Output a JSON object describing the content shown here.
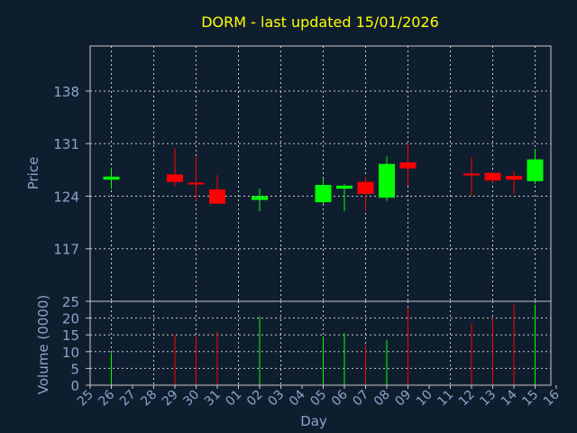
{
  "chart_data": {
    "type": "candlestick",
    "title": "DORM - last updated 15/01/2026",
    "xlabel": "Day",
    "x_tick_labels": [
      "25",
      "26",
      "27",
      "28",
      "29",
      "30",
      "31",
      "01",
      "02",
      "03",
      "04",
      "05",
      "06",
      "07",
      "08",
      "09",
      "10",
      "11",
      "12",
      "13",
      "14",
      "15",
      "16"
    ],
    "price_panel": {
      "ylabel": "Price",
      "ylim": [
        110,
        144
      ],
      "yticks": [
        117,
        124,
        131,
        138
      ],
      "grid": true,
      "candles": [
        {
          "day": "26",
          "open": 126.2,
          "high": 127.8,
          "low": 125.0,
          "close": 126.6
        },
        {
          "day": "29",
          "open": 126.9,
          "high": 130.3,
          "low": 125.3,
          "close": 125.9
        },
        {
          "day": "30",
          "open": 125.8,
          "high": 129.3,
          "low": 123.4,
          "close": 125.6
        },
        {
          "day": "31",
          "open": 124.9,
          "high": 126.8,
          "low": 123.0,
          "close": 123.0
        },
        {
          "day": "02",
          "open": 123.5,
          "high": 125.0,
          "low": 122.0,
          "close": 124.0
        },
        {
          "day": "05",
          "open": 123.2,
          "high": 126.4,
          "low": 123.0,
          "close": 125.5
        },
        {
          "day": "06",
          "open": 125.0,
          "high": 125.6,
          "low": 122.0,
          "close": 125.4
        },
        {
          "day": "07",
          "open": 125.9,
          "high": 126.6,
          "low": 122.0,
          "close": 124.3
        },
        {
          "day": "08",
          "open": 123.8,
          "high": 129.3,
          "low": 123.4,
          "close": 128.3
        },
        {
          "day": "09",
          "open": 128.5,
          "high": 131.0,
          "low": 125.4,
          "close": 127.7
        },
        {
          "day": "12",
          "open": 127.0,
          "high": 129.2,
          "low": 124.0,
          "close": 126.8
        },
        {
          "day": "13",
          "open": 127.1,
          "high": 127.2,
          "low": 125.8,
          "close": 126.1
        },
        {
          "day": "14",
          "open": 126.7,
          "high": 127.4,
          "low": 124.3,
          "close": 126.2
        },
        {
          "day": "15",
          "open": 126.0,
          "high": 130.3,
          "low": 125.6,
          "close": 128.9
        }
      ]
    },
    "volume_panel": {
      "ylabel": "Volume (0000)",
      "ylim": [
        0,
        25
      ],
      "yticks": [
        0,
        5,
        10,
        15,
        20,
        25
      ],
      "grid": true,
      "volumes": [
        9.5,
        15.0,
        14.5,
        16.0,
        20.5,
        14.5,
        15.5,
        12.0,
        13.5,
        23.0,
        18.5,
        20.0,
        24.0,
        24.0
      ]
    },
    "colors": {
      "up": "#00ff00",
      "down": "#ff0000",
      "title": "#ffff00",
      "text": "#8aa5c9",
      "grid": "#c8c8c8",
      "background": "#0f1e2f"
    }
  }
}
